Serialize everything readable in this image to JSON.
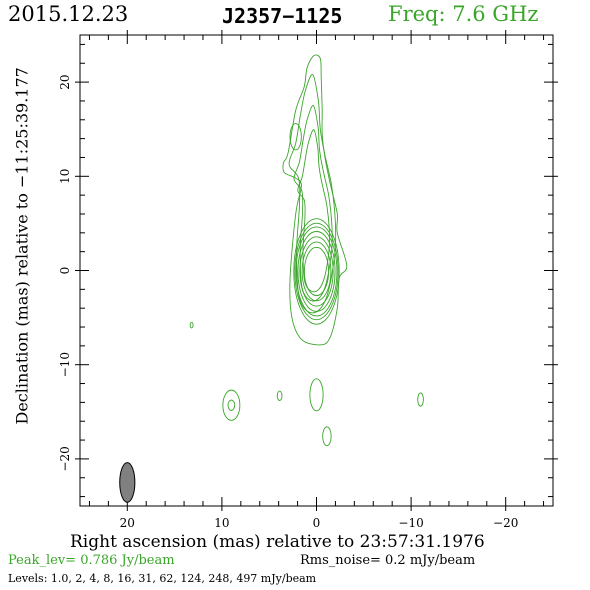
{
  "header": {
    "date": "2015.12.23",
    "source": "J2357−1125",
    "frequency": "Freq: 7.6 GHz",
    "frequency_color": "#3aa52a"
  },
  "footer": {
    "peak": "Peak_lev=  0.786 Jy/beam",
    "rms": "Rms_noise=  0.2 mJy/beam",
    "levels": "Levels: 1.0,   2,   4,   8,  16,  31,  62, 124, 248, 497 mJy/beam"
  },
  "colors": {
    "contour": "#3aa52a",
    "beam_fill": "#808080",
    "axes": "#000000"
  },
  "chart_data": {
    "type": "contour",
    "title": "J2357−1125",
    "xlabel": "Right ascension (mas) relative to 23:57:31.1976",
    "ylabel": "Declination (mas) relative to −11:25:39.177",
    "xlim": [
      25,
      -25
    ],
    "ylim": [
      -25,
      25
    ],
    "xticks": [
      20,
      10,
      0,
      -10,
      -20
    ],
    "xtick_labels": [
      "20",
      "10",
      "0",
      "−10",
      "−20"
    ],
    "yticks": [
      20,
      10,
      0,
      -10,
      -20
    ],
    "ytick_labels": [
      "20",
      "10",
      "0",
      "−10",
      "−20"
    ],
    "x_minor_step": 2,
    "y_minor_step": 2,
    "peak_jy_per_beam": 0.786,
    "rms_mjy_per_beam": 0.2,
    "levels_mjy_per_beam": [
      1.0,
      2,
      4,
      8,
      16,
      31,
      62,
      124,
      248,
      497
    ],
    "beam": {
      "x": 20,
      "y": -22.5,
      "major_mas": 4.2,
      "minor_mas": 1.6,
      "pa_deg": 0
    },
    "jet": {
      "outline": [
        [
          0.3,
          22.8
        ],
        [
          -0.4,
          22.5
        ],
        [
          -0.5,
          20.5
        ],
        [
          -0.6,
          17
        ],
        [
          -0.6,
          14.5
        ],
        [
          -0.9,
          12
        ],
        [
          -1.5,
          9
        ],
        [
          -2.2,
          6
        ],
        [
          -2.2,
          4
        ],
        [
          -3.2,
          0.5
        ],
        [
          -2.4,
          -0.8
        ],
        [
          -2.2,
          -4
        ],
        [
          -1.4,
          -7.2
        ],
        [
          -0.3,
          -7.9
        ],
        [
          1.6,
          -7.3
        ],
        [
          2.6,
          -5
        ],
        [
          2.8,
          -1
        ],
        [
          2.2,
          6
        ],
        [
          1.6,
          9
        ],
        [
          2.2,
          9.8
        ],
        [
          3.4,
          10.4
        ],
        [
          3.5,
          11.4
        ],
        [
          3.0,
          12.5
        ],
        [
          2.2,
          17
        ],
        [
          1.3,
          19.5
        ],
        [
          1.0,
          21.5
        ]
      ],
      "core_center": [
        0,
        0.5
      ],
      "core_contours": [
        [
          1.6,
          3.2
        ],
        [
          1.9,
          3.9
        ],
        [
          2.2,
          4.6
        ],
        [
          2.45,
          5.3
        ],
        [
          2.7,
          5.9
        ],
        [
          2.85,
          6.4
        ],
        [
          3.0,
          7.0
        ]
      ],
      "knot_center": [
        2.2,
        14.2
      ],
      "knot_contour": [
        0.6,
        1.4
      ],
      "interior_outline": [
        [
          0.4,
          20.8
        ],
        [
          -0.2,
          18
        ],
        [
          -0.4,
          15
        ],
        [
          -0.9,
          12.2
        ],
        [
          -1.6,
          9
        ],
        [
          -2.0,
          5
        ],
        [
          -1.9,
          1.5
        ],
        [
          -1.0,
          -3
        ],
        [
          0.4,
          -4.5
        ],
        [
          1.8,
          -3
        ],
        [
          2.1,
          2
        ],
        [
          1.8,
          7
        ],
        [
          1.9,
          9.8
        ],
        [
          2.9,
          11.3
        ],
        [
          2.2,
          13.5
        ],
        [
          1.7,
          16.5
        ],
        [
          1.2,
          19
        ]
      ]
    },
    "islands": [
      {
        "x": 9.0,
        "y": -14.3,
        "rx": 0.9,
        "ry": 1.6
      },
      {
        "x": 9.0,
        "y": -14.3,
        "rx": 0.35,
        "ry": 0.55
      },
      {
        "x": 0.0,
        "y": -13.2,
        "rx": 0.7,
        "ry": 1.7
      },
      {
        "x": -1.1,
        "y": -17.6,
        "rx": 0.45,
        "ry": 1.0
      },
      {
        "x": 3.9,
        "y": -13.3,
        "rx": 0.25,
        "ry": 0.5
      },
      {
        "x": -11.0,
        "y": -13.7,
        "rx": 0.3,
        "ry": 0.7
      },
      {
        "x": 13.2,
        "y": -5.8,
        "rx": 0.15,
        "ry": 0.3
      }
    ]
  }
}
